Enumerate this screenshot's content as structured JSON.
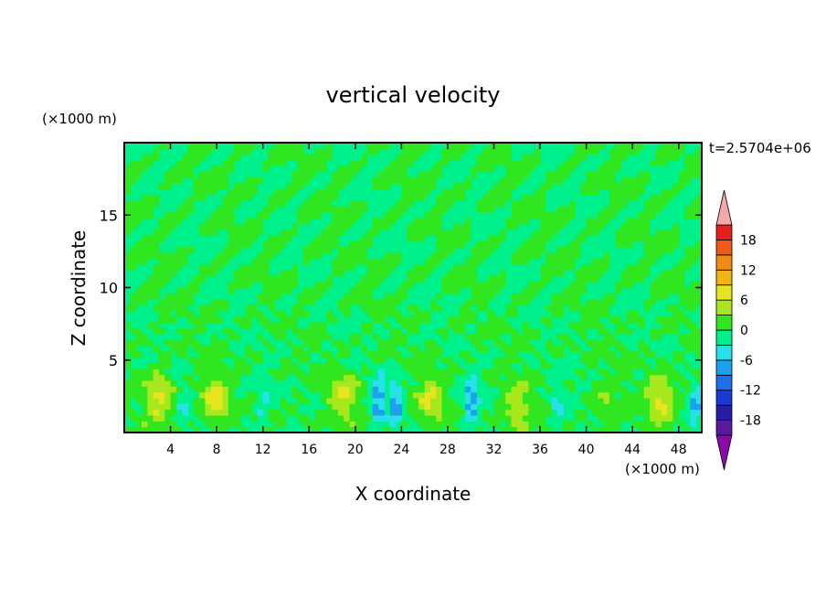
{
  "chart_data": {
    "type": "heatmap",
    "title": "vertical velocity",
    "xlabel": "X coordinate",
    "ylabel": "Z coordinate",
    "x_unit": "(×1000 m)",
    "y_unit": "(×1000 m)",
    "time_label": "t=2.5704e+06",
    "xlim": [
      0,
      50
    ],
    "ylim": [
      0,
      20
    ],
    "x_ticks": [
      4,
      8,
      12,
      16,
      20,
      24,
      28,
      32,
      36,
      40,
      44,
      48
    ],
    "y_ticks": [
      5,
      10,
      15
    ],
    "colorbar": {
      "levels": [
        -21,
        -18,
        -15,
        -12,
        -9,
        -6,
        -3,
        0,
        3,
        6,
        9,
        12,
        15,
        18,
        21
      ],
      "tick_labels": [
        18,
        12,
        6,
        0,
        -6,
        -12,
        -18
      ],
      "colors": [
        "#8a0aa8",
        "#5a1aa0",
        "#2a1aa8",
        "#1a3ad8",
        "#1e6ef0",
        "#1ea0f0",
        "#28e0e8",
        "#00f08c",
        "#30e620",
        "#a8e61e",
        "#e6e61e",
        "#f0b414",
        "#f08c14",
        "#f05a14",
        "#e61e1e",
        "#f4a8a8"
      ]
    },
    "features": [
      {
        "x": 3.0,
        "z": 2.4,
        "peak": 7,
        "kind": "updraft"
      },
      {
        "x": 7.9,
        "z": 2.3,
        "peak": 7,
        "kind": "updraft"
      },
      {
        "x": 19.0,
        "z": 2.5,
        "peak": 6,
        "kind": "updraft"
      },
      {
        "x": 26.5,
        "z": 2.3,
        "peak": 6,
        "kind": "updraft"
      },
      {
        "x": 34.0,
        "z": 1.8,
        "peak": 5,
        "kind": "updraft"
      },
      {
        "x": 41.5,
        "z": 1.8,
        "peak": 3,
        "kind": "updraft"
      },
      {
        "x": 46.5,
        "z": 2.4,
        "peak": 7,
        "kind": "updraft"
      },
      {
        "x": 5.0,
        "z": 2.0,
        "peak": -3,
        "kind": "downdraft"
      },
      {
        "x": 12.0,
        "z": 2.2,
        "peak": -3,
        "kind": "downdraft"
      },
      {
        "x": 22.0,
        "z": 2.2,
        "peak": -8,
        "kind": "downdraft"
      },
      {
        "x": 23.5,
        "z": 2.0,
        "peak": -7,
        "kind": "downdraft"
      },
      {
        "x": 30.0,
        "z": 2.2,
        "peak": -8,
        "kind": "downdraft"
      },
      {
        "x": 37.5,
        "z": 2.0,
        "peak": -4,
        "kind": "downdraft"
      },
      {
        "x": 49.5,
        "z": 1.8,
        "peak": -6,
        "kind": "downdraft"
      }
    ]
  }
}
